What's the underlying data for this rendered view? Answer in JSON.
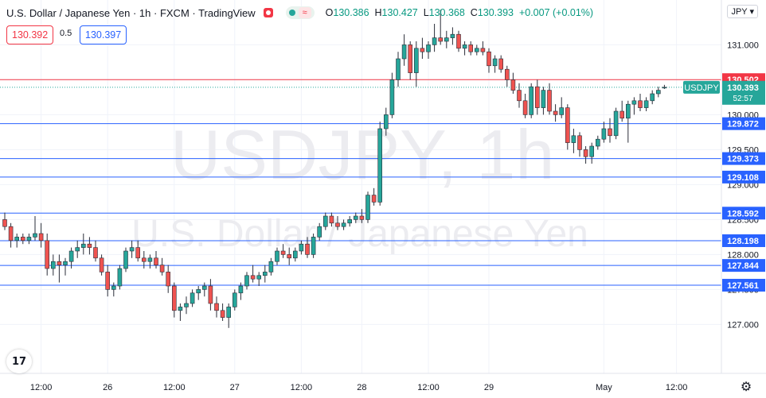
{
  "header": {
    "title": "U.S. Dollar / Japanese Yen · 1h · FXCM · TradingView",
    "open_label": "O",
    "open": "130.386",
    "high_label": "H",
    "high": "130.427",
    "low_label": "L",
    "low": "130.368",
    "close_label": "C",
    "close": "130.393",
    "change": "+0.007 (+0.01%)"
  },
  "quote": {
    "sell": "130.392",
    "spread": "0.5",
    "buy": "130.397"
  },
  "currency": "JPY ▾",
  "watermark": {
    "symbol": "USDJPY, 1h",
    "name": "U.S. Dollar / Japanese Yen"
  },
  "colors": {
    "up": "#26a69a",
    "down": "#ef5350",
    "blue_line": "#2962ff",
    "red_line": "#f23645",
    "last_price": "#26a69a",
    "grid": "#f0f3fa",
    "axis_text": "#131722"
  },
  "chart_data": {
    "type": "candlestick",
    "symbol": "USDJPY",
    "timeframe": "1h",
    "y_range": [
      126.3,
      131.55
    ],
    "y_ticks": [
      127.0,
      127.5,
      128.0,
      128.5,
      129.0,
      129.5,
      130.0,
      130.5,
      131.0
    ],
    "y_tick_labels": [
      "127.000",
      "127.500",
      "128.000",
      "128.500",
      "129.000",
      "129.500",
      "130.000",
      "130.500",
      "131.000"
    ],
    "x_range": [
      0,
      110
    ],
    "x_ticks": [
      {
        "label": "12:00",
        "bar": 6
      },
      {
        "label": "26",
        "bar": 17
      },
      {
        "label": "12:00",
        "bar": 28
      },
      {
        "label": "27",
        "bar": 38
      },
      {
        "label": "12:00",
        "bar": 49
      },
      {
        "label": "28",
        "bar": 59
      },
      {
        "label": "12:00",
        "bar": 70
      },
      {
        "label": "29",
        "bar": 80
      },
      {
        "label": "May",
        "bar": 99
      },
      {
        "label": "12:00",
        "bar": 111
      }
    ],
    "horizontal_lines": [
      {
        "price": 130.502,
        "label": "130.502",
        "color": "red"
      },
      {
        "price": 129.872,
        "label": "129.872",
        "color": "blue"
      },
      {
        "price": 129.373,
        "label": "129.373",
        "color": "blue"
      },
      {
        "price": 129.108,
        "label": "129.108",
        "color": "blue"
      },
      {
        "price": 128.592,
        "label": "128.592",
        "color": "blue"
      },
      {
        "price": 128.198,
        "label": "128.198",
        "color": "blue"
      },
      {
        "price": 127.844,
        "label": "127.844",
        "color": "blue"
      },
      {
        "price": 127.561,
        "label": "127.561",
        "color": "blue"
      }
    ],
    "last_price": {
      "price": 130.393,
      "label": "130.393",
      "symbol": "USDJPY",
      "countdown": "52:57"
    },
    "candles": [
      [
        128.5,
        128.6,
        128.35,
        128.4
      ],
      [
        128.4,
        128.45,
        128.1,
        128.2
      ],
      [
        128.2,
        128.3,
        128.1,
        128.25
      ],
      [
        128.25,
        128.3,
        128.15,
        128.2
      ],
      [
        128.2,
        128.3,
        128.15,
        128.25
      ],
      [
        128.25,
        128.55,
        128.2,
        128.3
      ],
      [
        128.3,
        128.45,
        128.1,
        128.2
      ],
      [
        128.2,
        128.3,
        127.7,
        127.8
      ],
      [
        127.8,
        128.0,
        127.7,
        127.9
      ],
      [
        127.9,
        128.0,
        127.6,
        127.85
      ],
      [
        127.85,
        127.95,
        127.7,
        127.9
      ],
      [
        127.9,
        128.1,
        127.8,
        128.05
      ],
      [
        128.05,
        128.2,
        127.95,
        128.1
      ],
      [
        128.1,
        128.3,
        128.0,
        128.15
      ],
      [
        128.15,
        128.25,
        128.0,
        128.1
      ],
      [
        128.1,
        128.2,
        127.9,
        127.95
      ],
      [
        127.95,
        128.0,
        127.7,
        127.75
      ],
      [
        127.75,
        127.85,
        127.4,
        127.5
      ],
      [
        127.5,
        127.6,
        127.4,
        127.55
      ],
      [
        127.55,
        127.85,
        127.5,
        127.8
      ],
      [
        127.8,
        128.1,
        127.75,
        128.05
      ],
      [
        128.05,
        128.2,
        127.95,
        128.1
      ],
      [
        128.1,
        128.2,
        127.9,
        127.95
      ],
      [
        127.95,
        128.05,
        127.8,
        127.9
      ],
      [
        127.9,
        128.0,
        127.8,
        127.95
      ],
      [
        127.95,
        128.05,
        127.8,
        127.85
      ],
      [
        127.85,
        127.95,
        127.7,
        127.75
      ],
      [
        127.75,
        127.85,
        127.45,
        127.55
      ],
      [
        127.55,
        127.6,
        127.1,
        127.2
      ],
      [
        127.2,
        127.3,
        127.05,
        127.25
      ],
      [
        127.25,
        127.4,
        127.15,
        127.3
      ],
      [
        127.3,
        127.5,
        127.25,
        127.45
      ],
      [
        127.45,
        127.55,
        127.35,
        127.5
      ],
      [
        127.5,
        127.6,
        127.4,
        127.55
      ],
      [
        127.55,
        127.65,
        127.2,
        127.3
      ],
      [
        127.3,
        127.4,
        127.1,
        127.2
      ],
      [
        127.2,
        127.3,
        127.05,
        127.1
      ],
      [
        127.1,
        127.3,
        126.95,
        127.25
      ],
      [
        127.25,
        127.5,
        127.2,
        127.45
      ],
      [
        127.45,
        127.6,
        127.35,
        127.55
      ],
      [
        127.55,
        127.75,
        127.5,
        127.7
      ],
      [
        127.7,
        127.85,
        127.6,
        127.65
      ],
      [
        127.65,
        127.75,
        127.55,
        127.7
      ],
      [
        127.7,
        127.85,
        127.6,
        127.75
      ],
      [
        127.75,
        127.95,
        127.7,
        127.9
      ],
      [
        127.9,
        128.1,
        127.85,
        128.05
      ],
      [
        128.05,
        128.15,
        127.95,
        128.0
      ],
      [
        128.0,
        128.1,
        127.85,
        127.95
      ],
      [
        127.95,
        128.1,
        127.9,
        128.05
      ],
      [
        128.05,
        128.2,
        128.0,
        128.15
      ],
      [
        128.15,
        128.25,
        127.95,
        128.0
      ],
      [
        128.0,
        128.3,
        127.95,
        128.25
      ],
      [
        128.25,
        128.45,
        128.2,
        128.4
      ],
      [
        128.4,
        128.6,
        128.35,
        128.55
      ],
      [
        128.55,
        128.6,
        128.4,
        128.45
      ],
      [
        128.45,
        128.55,
        128.35,
        128.4
      ],
      [
        128.4,
        128.5,
        128.35,
        128.45
      ],
      [
        128.45,
        128.55,
        128.4,
        128.5
      ],
      [
        128.5,
        128.6,
        128.45,
        128.55
      ],
      [
        128.55,
        128.65,
        128.45,
        128.5
      ],
      [
        128.5,
        128.9,
        128.45,
        128.85
      ],
      [
        128.85,
        128.95,
        128.7,
        128.75
      ],
      [
        128.75,
        129.9,
        128.7,
        129.8
      ],
      [
        129.8,
        130.1,
        129.7,
        130.0
      ],
      [
        130.0,
        130.6,
        129.95,
        130.5
      ],
      [
        130.5,
        130.9,
        130.4,
        130.8
      ],
      [
        130.8,
        131.15,
        130.7,
        131.0
      ],
      [
        131.0,
        131.05,
        130.5,
        130.6
      ],
      [
        130.6,
        131.05,
        130.4,
        130.95
      ],
      [
        130.95,
        131.1,
        130.8,
        130.9
      ],
      [
        130.9,
        131.05,
        130.8,
        131.0
      ],
      [
        131.0,
        131.3,
        130.9,
        131.1
      ],
      [
        131.1,
        131.5,
        131.0,
        131.05
      ],
      [
        131.05,
        131.2,
        130.95,
        131.1
      ],
      [
        131.1,
        131.25,
        131.0,
        131.15
      ],
      [
        131.15,
        131.2,
        130.9,
        130.95
      ],
      [
        130.95,
        131.05,
        130.85,
        131.0
      ],
      [
        131.0,
        131.05,
        130.85,
        130.9
      ],
      [
        130.9,
        131.0,
        130.85,
        130.95
      ],
      [
        130.95,
        131.05,
        130.85,
        130.9
      ],
      [
        130.9,
        130.95,
        130.6,
        130.7
      ],
      [
        130.7,
        130.85,
        130.6,
        130.8
      ],
      [
        130.8,
        130.85,
        130.6,
        130.65
      ],
      [
        130.65,
        130.7,
        130.4,
        130.5
      ],
      [
        130.5,
        130.6,
        130.3,
        130.35
      ],
      [
        130.35,
        130.45,
        130.1,
        130.2
      ],
      [
        130.2,
        130.3,
        129.95,
        130.0
      ],
      [
        130.0,
        130.45,
        129.95,
        130.4
      ],
      [
        130.4,
        130.5,
        130.0,
        130.1
      ],
      [
        130.1,
        130.4,
        130.0,
        130.35
      ],
      [
        130.35,
        130.45,
        130.0,
        130.05
      ],
      [
        130.05,
        130.15,
        129.9,
        130.0
      ],
      [
        130.0,
        130.25,
        129.95,
        130.1
      ],
      [
        130.1,
        130.15,
        129.5,
        129.6
      ],
      [
        129.6,
        129.8,
        129.45,
        129.7
      ],
      [
        129.7,
        129.75,
        129.4,
        129.5
      ],
      [
        129.5,
        129.55,
        129.3,
        129.4
      ],
      [
        129.4,
        129.6,
        129.3,
        129.55
      ],
      [
        129.55,
        129.7,
        129.5,
        129.65
      ],
      [
        129.65,
        129.9,
        129.6,
        129.8
      ],
      [
        129.8,
        129.95,
        129.6,
        129.7
      ],
      [
        129.7,
        130.1,
        129.65,
        130.05
      ],
      [
        130.05,
        130.2,
        129.9,
        129.95
      ],
      [
        129.95,
        130.2,
        129.6,
        130.15
      ],
      [
        130.15,
        130.25,
        130.0,
        130.2
      ],
      [
        130.2,
        130.3,
        130.05,
        130.1
      ],
      [
        130.1,
        130.25,
        130.05,
        130.2
      ],
      [
        130.2,
        130.35,
        130.15,
        130.3
      ],
      [
        130.3,
        130.4,
        130.25,
        130.35
      ],
      [
        130.386,
        130.427,
        130.368,
        130.393
      ]
    ]
  }
}
